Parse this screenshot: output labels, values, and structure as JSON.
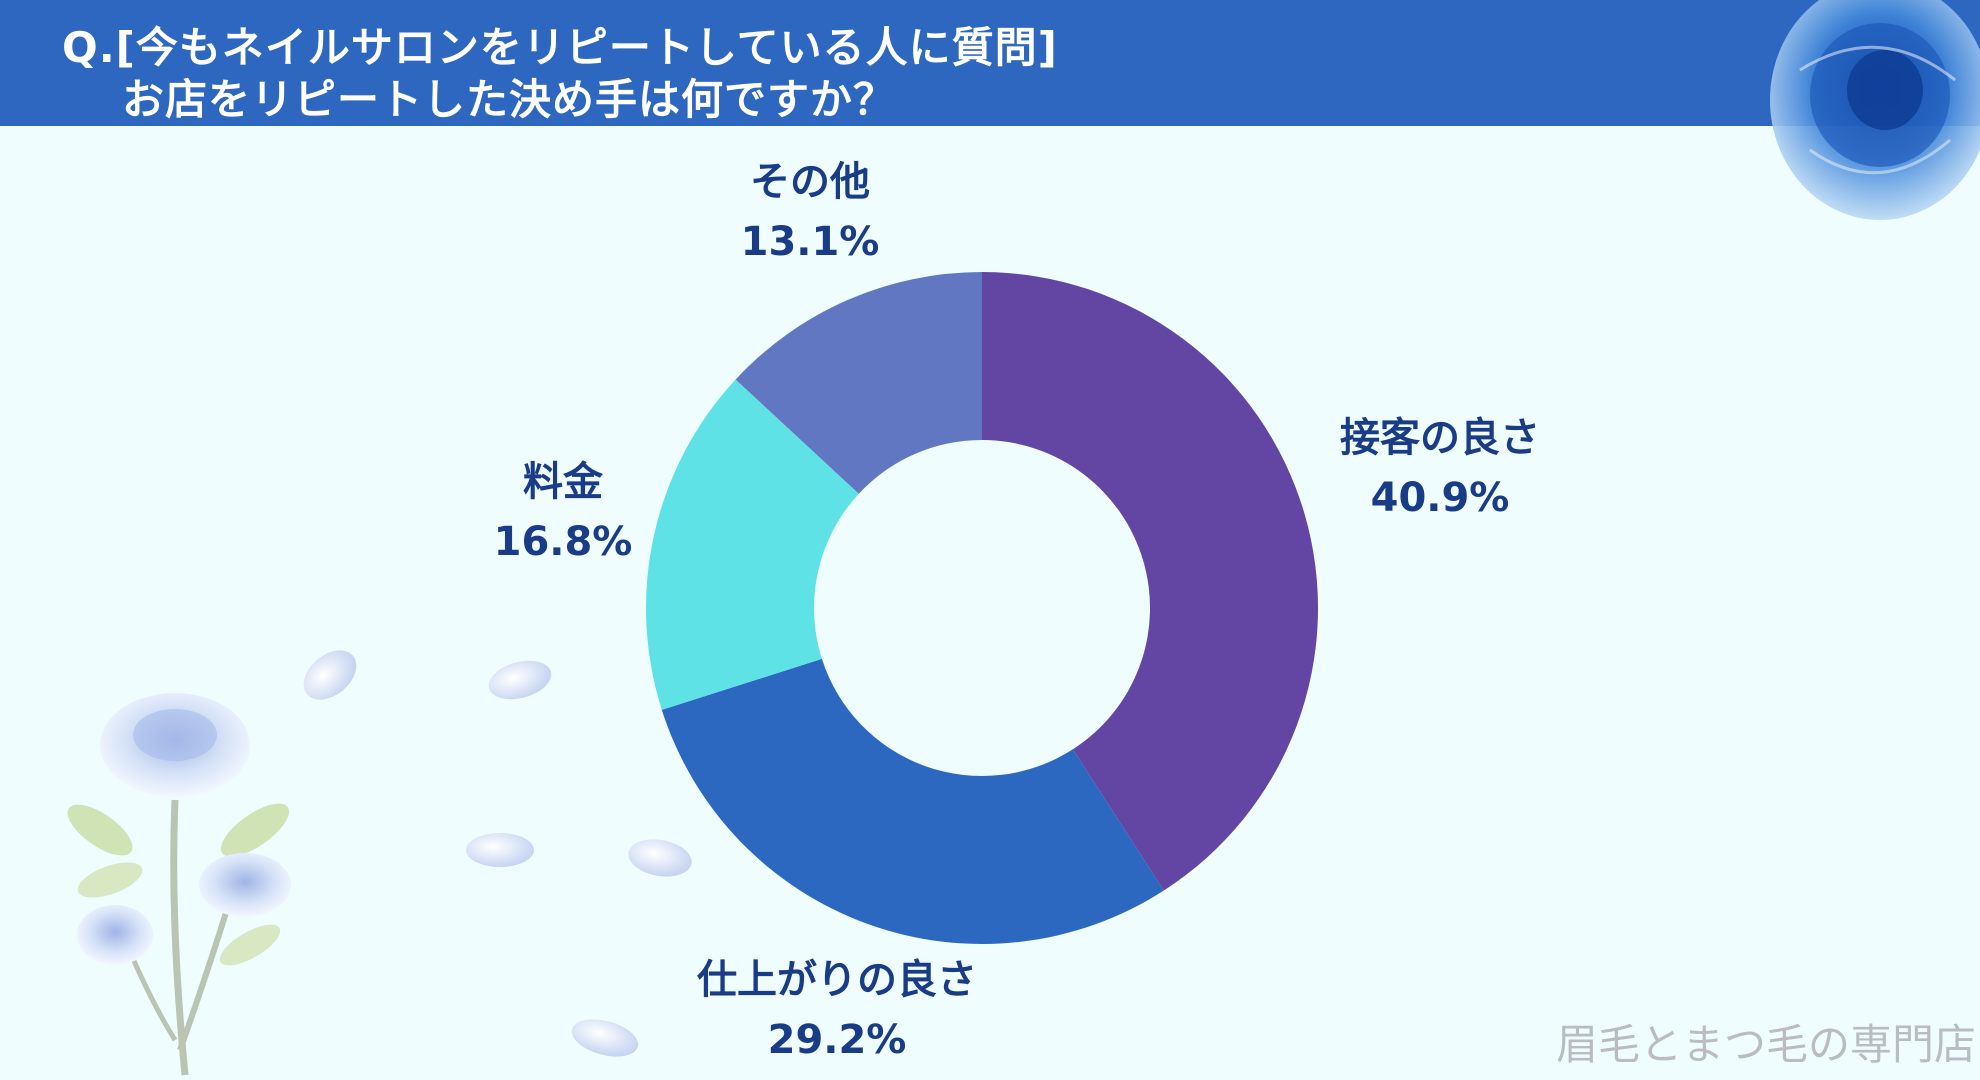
{
  "question": {
    "line1": "Q.[今もネイルサロンをリピートしている人に質問]",
    "line2": "お店をリピートした決め手は何ですか？"
  },
  "chart_data": {
    "type": "pie",
    "donut": true,
    "categories": [
      "接客の良さ",
      "仕上がりの良さ",
      "料金",
      "その他"
    ],
    "values": [
      40.9,
      29.2,
      16.8,
      13.1
    ],
    "value_labels": [
      "40.9%",
      "29.2%",
      "16.8%",
      "13.1%"
    ],
    "colors": [
      "#6346a4",
      "#2c68bf",
      "#5ee2e6",
      "#6177c2"
    ],
    "start_angle_deg": 0,
    "direction": "clockwise"
  },
  "footer": {
    "text": "眉毛とまつ毛の専門店"
  },
  "decor": {
    "icons": [
      "blue-rose-icon",
      "blue-rose-bouquet-icon",
      "petal-icon"
    ]
  }
}
